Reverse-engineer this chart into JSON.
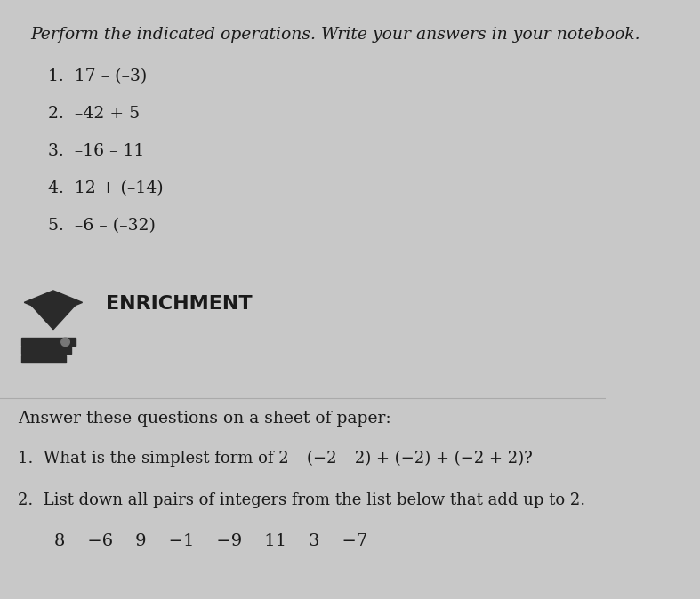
{
  "background_color": "#c8c8c8",
  "title_text": "Perform the indicated operations. Write your answers in your notebook.",
  "problems": [
    "1.  17 – (–3)",
    "2.  –42 + 5",
    "3.  –16 – 11",
    "4.  12 + (–14)",
    "5.  –6 – (–32)"
  ],
  "enrichment_label": "ENRICHMENT",
  "enrichment_intro": "Answer these questions on a sheet of paper:",
  "enrichment_q1": "1.  What is the simplest form of 2 – (−2 – 2) + (−2) + (−2 + 2)?",
  "enrichment_q2": "2.  List down all pairs of integers from the list below that add up to 2.",
  "number_list": "8    −6    9    −1    −9    11    3    −7",
  "font_color": "#1a1a1a",
  "icon_color": "#2a2a2a",
  "line_color": "#aaaaaa"
}
